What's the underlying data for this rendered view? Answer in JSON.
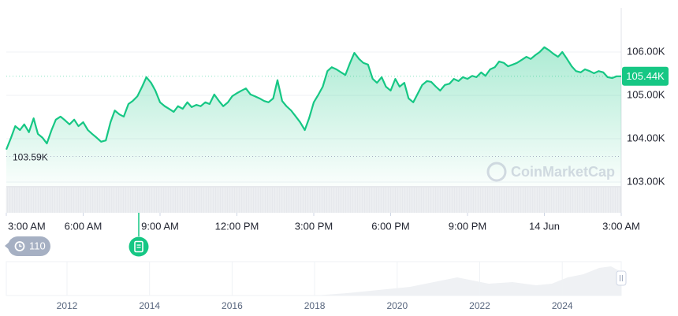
{
  "chart_data": {
    "type": "line",
    "color": "#16c784",
    "x": [
      0,
      11,
      21,
      32,
      42,
      53,
      64,
      74,
      85,
      95,
      106,
      116,
      127,
      138,
      148,
      159,
      169,
      180,
      191,
      201,
      212,
      222,
      233,
      244,
      254,
      265,
      275,
      286,
      296,
      307,
      318,
      328,
      339,
      349,
      360,
      371,
      381,
      392,
      402,
      413,
      424,
      434,
      445,
      455,
      466,
      476,
      487,
      498,
      508,
      519,
      529,
      540,
      551,
      561,
      572,
      582,
      593,
      604,
      614,
      625,
      635,
      646,
      656,
      667,
      678,
      688,
      699,
      709,
      720,
      731,
      741,
      752,
      762,
      773,
      784,
      794,
      805,
      815,
      826,
      836,
      847,
      858,
      868,
      879,
      889,
      900,
      911,
      921,
      932,
      942,
      953,
      964,
      974,
      985,
      995,
      1006,
      1016,
      1027,
      1038,
      1048,
      1059,
      1069,
      1080,
      1091,
      1101,
      1112,
      1122,
      1133,
      1144,
      1154,
      1165,
      1175,
      1186,
      1196,
      1207,
      1218,
      1228,
      1239,
      1249,
      1260,
      1271,
      1281,
      1292,
      1302,
      1313,
      1324,
      1334,
      1345,
      1355,
      1366,
      1376,
      1387,
      1398,
      1408,
      1419,
      1429,
      1440
    ],
    "values": [
      103750,
      104020,
      104290,
      104200,
      104330,
      104150,
      104470,
      104110,
      104020,
      103890,
      104200,
      104440,
      104510,
      104420,
      104330,
      104440,
      104290,
      104380,
      104200,
      104110,
      104020,
      103930,
      103960,
      104380,
      104650,
      104560,
      104510,
      104800,
      104870,
      104980,
      105200,
      105420,
      105290,
      105110,
      104840,
      104750,
      104690,
      104620,
      104750,
      104690,
      104840,
      104730,
      104780,
      104750,
      104840,
      104800,
      105020,
      104870,
      104750,
      104840,
      104980,
      105050,
      105110,
      105160,
      105020,
      104980,
      104930,
      104870,
      104840,
      104930,
      105350,
      104870,
      104750,
      104650,
      104510,
      104380,
      104200,
      104470,
      104840,
      105020,
      105200,
      105560,
      105650,
      105600,
      105530,
      105470,
      105750,
      105980,
      105840,
      105750,
      105710,
      105380,
      105290,
      105420,
      105200,
      105110,
      105380,
      105200,
      105290,
      104930,
      104840,
      105050,
      105240,
      105330,
      105310,
      105200,
      105110,
      105240,
      105270,
      105380,
      105330,
      105420,
      105380,
      105450,
      105420,
      105530,
      105450,
      105600,
      105650,
      105780,
      105750,
      105670,
      105710,
      105750,
      105820,
      105890,
      105840,
      105930,
      106000,
      106110,
      106040,
      105960,
      105890,
      106000,
      105840,
      105670,
      105560,
      105530,
      105600,
      105560,
      105510,
      105560,
      105530,
      105420,
      105400,
      105440,
      105440
    ],
    "xlim": [
      0,
      1440
    ],
    "xticks": [
      {
        "value": 0,
        "label": "3:00 AM"
      },
      {
        "value": 180,
        "label": "6:00 AM"
      },
      {
        "value": 360,
        "label": "9:00 AM"
      },
      {
        "value": 540,
        "label": "12:00 PM"
      },
      {
        "value": 720,
        "label": "3:00 PM"
      },
      {
        "value": 900,
        "label": "6:00 PM"
      },
      {
        "value": 1080,
        "label": "9:00 PM"
      },
      {
        "value": 1260,
        "label": "14 Jun"
      },
      {
        "value": 1440,
        "label": "3:00 AM"
      }
    ],
    "ylim": [
      102300,
      107000
    ],
    "yticks": [
      {
        "value": 106000,
        "label": "106.00K"
      },
      {
        "value": 105000,
        "label": "105.00K"
      },
      {
        "value": 104000,
        "label": "104.00K"
      },
      {
        "value": 103000,
        "label": "103.00K"
      }
    ],
    "grid": true,
    "low": {
      "value": 103590,
      "label": "103.59K"
    },
    "last": {
      "value": 105440,
      "label": "105.44K"
    },
    "watermark": "CoinMarketCap",
    "badge": "110",
    "navigator_years": [
      "2012",
      "2014",
      "2016",
      "2018",
      "2020",
      "2022",
      "2024"
    ]
  }
}
